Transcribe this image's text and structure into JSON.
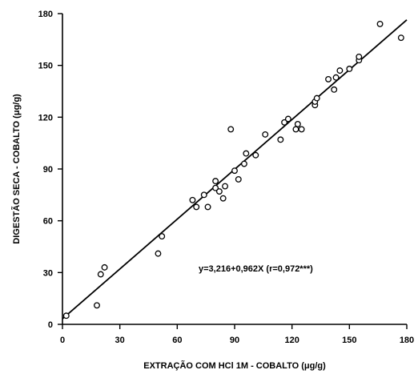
{
  "chart_data": {
    "type": "scatter",
    "title": "",
    "xlabel": "EXTRAÇÃO COM HCl 1M - COBALTO (μg/g)",
    "ylabel": "DIGESTÃO SECA - COBALTO (μg/g)",
    "xlim": [
      0,
      180
    ],
    "ylim": [
      0,
      180
    ],
    "xticks": [
      "0",
      "30",
      "60",
      "90",
      "120",
      "150",
      "180"
    ],
    "yticks": [
      "0",
      "30",
      "60",
      "90",
      "120",
      "150",
      "180"
    ],
    "grid": false,
    "legend": "none",
    "annotation": "y=3,216+0,962X (r=0,972***)",
    "regression": {
      "intercept": 3.216,
      "slope": 0.962
    },
    "points": [
      {
        "x": 2,
        "y": 5
      },
      {
        "x": 18,
        "y": 11
      },
      {
        "x": 20,
        "y": 29
      },
      {
        "x": 22,
        "y": 33
      },
      {
        "x": 50,
        "y": 41
      },
      {
        "x": 52,
        "y": 51
      },
      {
        "x": 68,
        "y": 72
      },
      {
        "x": 70,
        "y": 68
      },
      {
        "x": 74,
        "y": 75
      },
      {
        "x": 76,
        "y": 68
      },
      {
        "x": 80,
        "y": 83
      },
      {
        "x": 80,
        "y": 79
      },
      {
        "x": 82,
        "y": 77
      },
      {
        "x": 84,
        "y": 73
      },
      {
        "x": 85,
        "y": 80
      },
      {
        "x": 88,
        "y": 113
      },
      {
        "x": 90,
        "y": 89
      },
      {
        "x": 92,
        "y": 84
      },
      {
        "x": 95,
        "y": 93
      },
      {
        "x": 96,
        "y": 99
      },
      {
        "x": 101,
        "y": 98
      },
      {
        "x": 106,
        "y": 110
      },
      {
        "x": 114,
        "y": 107
      },
      {
        "x": 116,
        "y": 117
      },
      {
        "x": 118,
        "y": 119
      },
      {
        "x": 122,
        "y": 113
      },
      {
        "x": 123,
        "y": 116
      },
      {
        "x": 125,
        "y": 113
      },
      {
        "x": 132,
        "y": 127
      },
      {
        "x": 132,
        "y": 129
      },
      {
        "x": 133,
        "y": 131
      },
      {
        "x": 139,
        "y": 142
      },
      {
        "x": 142,
        "y": 136
      },
      {
        "x": 143,
        "y": 143
      },
      {
        "x": 145,
        "y": 147
      },
      {
        "x": 150,
        "y": 148
      },
      {
        "x": 155,
        "y": 153
      },
      {
        "x": 155,
        "y": 155
      },
      {
        "x": 166,
        "y": 174
      },
      {
        "x": 177,
        "y": 166
      }
    ]
  }
}
